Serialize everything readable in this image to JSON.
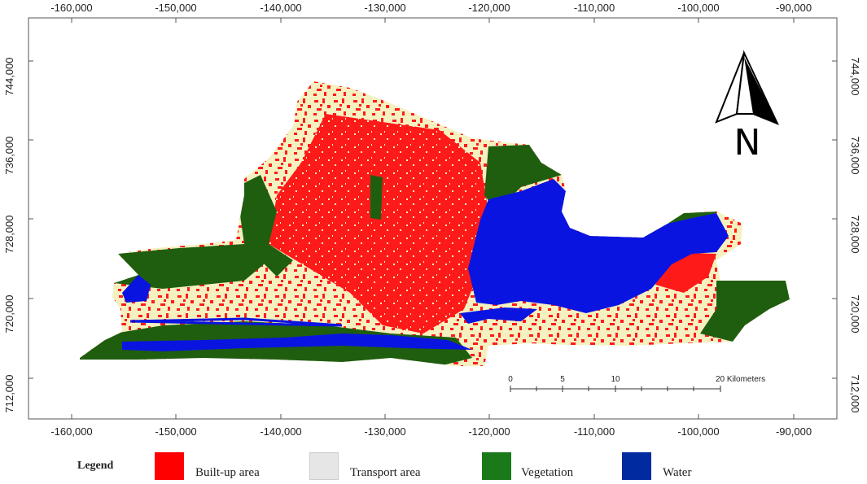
{
  "map": {
    "x_ticks": [
      "-160,000",
      "-150,000",
      "-140,000",
      "-130,000",
      "-120,000",
      "-110,000",
      "-100,000",
      "-90,000"
    ],
    "y_ticks": [
      "744,000",
      "736,000",
      "728,000",
      "720,000",
      "712,000"
    ],
    "north_label": "N",
    "scale_bar": {
      "labels": [
        "0",
        "5",
        "10",
        "20 Kilometers"
      ]
    }
  },
  "legend": {
    "title": "Legend",
    "items": [
      {
        "label": "Built-up area",
        "color": "#ff0000"
      },
      {
        "label": "Transport area",
        "color": "#e6e6e6"
      },
      {
        "label": "Vegetation",
        "color": "#1a7a1a"
      },
      {
        "label": "Water",
        "color": "#002ba0"
      }
    ]
  },
  "colors": {
    "built_up": "#ff1a1a",
    "transport": "#f5f0c0",
    "vegetation": "#1f5e0f",
    "water": "#0a14e0"
  }
}
